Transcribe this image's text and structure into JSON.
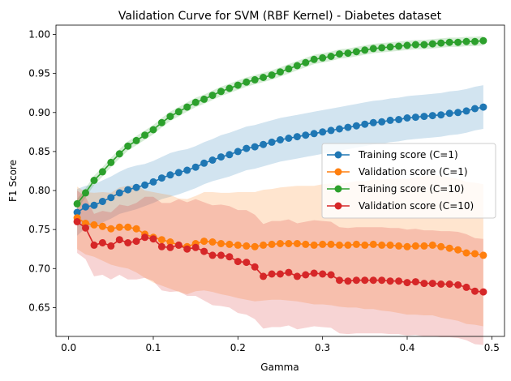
{
  "chart_data": {
    "type": "line",
    "title": "Validation Curve for SVM (RBF Kernel) - Diabetes dataset",
    "xlabel": "Gamma",
    "ylabel": "F1 Score",
    "xlim": [
      -0.015,
      0.515
    ],
    "ylim": [
      0.613,
      1.012
    ],
    "xticks": [
      0.0,
      0.1,
      0.2,
      0.3,
      0.4,
      0.5
    ],
    "xtick_labels": [
      "0.0",
      "0.1",
      "0.2",
      "0.3",
      "0.4",
      "0.5"
    ],
    "yticks": [
      0.65,
      0.7,
      0.75,
      0.8,
      0.85,
      0.9,
      0.95,
      1.0
    ],
    "ytick_labels": [
      "0.65",
      "0.70",
      "0.75",
      "0.80",
      "0.85",
      "0.90",
      "0.95",
      "1.00"
    ],
    "grid": false,
    "legend_position": "center-right",
    "x": [
      0.01,
      0.02,
      0.03,
      0.04,
      0.05,
      0.06,
      0.07,
      0.08,
      0.09,
      0.1,
      0.11,
      0.12,
      0.13,
      0.14,
      0.15,
      0.16,
      0.17,
      0.18,
      0.19,
      0.2,
      0.21,
      0.22,
      0.23,
      0.24,
      0.25,
      0.26,
      0.27,
      0.28,
      0.29,
      0.3,
      0.31,
      0.32,
      0.33,
      0.34,
      0.35,
      0.36,
      0.37,
      0.38,
      0.39,
      0.4,
      0.41,
      0.42,
      0.43,
      0.44,
      0.45,
      0.46,
      0.47,
      0.48,
      0.49
    ],
    "series": [
      {
        "name": "Training score (C=1)",
        "color": "#1f77b4",
        "values": [
          0.772,
          0.779,
          0.781,
          0.786,
          0.791,
          0.797,
          0.801,
          0.804,
          0.807,
          0.811,
          0.816,
          0.82,
          0.823,
          0.826,
          0.83,
          0.835,
          0.839,
          0.843,
          0.846,
          0.85,
          0.854,
          0.856,
          0.859,
          0.862,
          0.865,
          0.867,
          0.869,
          0.871,
          0.873,
          0.875,
          0.877,
          0.879,
          0.881,
          0.883,
          0.885,
          0.887,
          0.888,
          0.89,
          0.891,
          0.893,
          0.894,
          0.895,
          0.896,
          0.897,
          0.899,
          0.9,
          0.902,
          0.905,
          0.907
        ],
        "band_lower": [
          0.742,
          0.752,
          0.754,
          0.759,
          0.764,
          0.77,
          0.773,
          0.776,
          0.78,
          0.784,
          0.789,
          0.792,
          0.795,
          0.799,
          0.803,
          0.808,
          0.812,
          0.815,
          0.818,
          0.822,
          0.826,
          0.828,
          0.831,
          0.834,
          0.837,
          0.839,
          0.841,
          0.843,
          0.845,
          0.847,
          0.849,
          0.851,
          0.853,
          0.855,
          0.857,
          0.859,
          0.86,
          0.862,
          0.863,
          0.865,
          0.866,
          0.867,
          0.868,
          0.869,
          0.871,
          0.872,
          0.874,
          0.877,
          0.879
        ],
        "band_upper": [
          0.802,
          0.806,
          0.808,
          0.813,
          0.818,
          0.824,
          0.829,
          0.832,
          0.834,
          0.838,
          0.843,
          0.848,
          0.851,
          0.853,
          0.857,
          0.862,
          0.866,
          0.871,
          0.874,
          0.878,
          0.882,
          0.884,
          0.887,
          0.89,
          0.893,
          0.895,
          0.897,
          0.899,
          0.901,
          0.903,
          0.905,
          0.907,
          0.909,
          0.911,
          0.913,
          0.915,
          0.916,
          0.918,
          0.919,
          0.921,
          0.922,
          0.923,
          0.924,
          0.925,
          0.927,
          0.928,
          0.93,
          0.933,
          0.935
        ]
      },
      {
        "name": "Validation score (C=1)",
        "color": "#ff7f0e",
        "values": [
          0.765,
          0.758,
          0.756,
          0.754,
          0.751,
          0.753,
          0.753,
          0.751,
          0.744,
          0.74,
          0.737,
          0.734,
          0.73,
          0.728,
          0.732,
          0.735,
          0.734,
          0.732,
          0.731,
          0.73,
          0.729,
          0.728,
          0.73,
          0.731,
          0.732,
          0.732,
          0.732,
          0.731,
          0.73,
          0.731,
          0.731,
          0.73,
          0.73,
          0.731,
          0.73,
          0.731,
          0.73,
          0.73,
          0.729,
          0.728,
          0.729,
          0.729,
          0.73,
          0.728,
          0.726,
          0.724,
          0.72,
          0.719,
          0.717
        ],
        "band_lower": [
          0.725,
          0.718,
          0.715,
          0.71,
          0.705,
          0.702,
          0.7,
          0.695,
          0.688,
          0.682,
          0.678,
          0.674,
          0.67,
          0.667,
          0.671,
          0.672,
          0.67,
          0.667,
          0.665,
          0.662,
          0.66,
          0.658,
          0.659,
          0.66,
          0.66,
          0.659,
          0.658,
          0.656,
          0.654,
          0.654,
          0.653,
          0.651,
          0.65,
          0.65,
          0.648,
          0.648,
          0.646,
          0.645,
          0.643,
          0.641,
          0.641,
          0.64,
          0.64,
          0.637,
          0.635,
          0.633,
          0.629,
          0.628,
          0.626
        ],
        "band_upper": [
          0.805,
          0.798,
          0.797,
          0.798,
          0.797,
          0.804,
          0.806,
          0.807,
          0.8,
          0.798,
          0.796,
          0.794,
          0.79,
          0.789,
          0.793,
          0.798,
          0.798,
          0.797,
          0.797,
          0.798,
          0.798,
          0.798,
          0.801,
          0.802,
          0.804,
          0.805,
          0.806,
          0.806,
          0.806,
          0.808,
          0.809,
          0.809,
          0.81,
          0.812,
          0.812,
          0.814,
          0.814,
          0.815,
          0.815,
          0.815,
          0.817,
          0.818,
          0.82,
          0.819,
          0.817,
          0.815,
          0.811,
          0.81,
          0.808
        ]
      },
      {
        "name": "Training score (C=10)",
        "color": "#2ca02c",
        "values": [
          0.783,
          0.797,
          0.813,
          0.824,
          0.836,
          0.847,
          0.857,
          0.864,
          0.871,
          0.878,
          0.887,
          0.895,
          0.901,
          0.907,
          0.913,
          0.917,
          0.922,
          0.927,
          0.931,
          0.935,
          0.939,
          0.942,
          0.945,
          0.948,
          0.952,
          0.956,
          0.96,
          0.964,
          0.968,
          0.97,
          0.972,
          0.975,
          0.976,
          0.978,
          0.98,
          0.982,
          0.983,
          0.984,
          0.985,
          0.986,
          0.987,
          0.987,
          0.988,
          0.989,
          0.99,
          0.99,
          0.991,
          0.991,
          0.992
        ],
        "band_lower": [
          0.777,
          0.791,
          0.807,
          0.818,
          0.83,
          0.841,
          0.851,
          0.858,
          0.865,
          0.872,
          0.881,
          0.889,
          0.895,
          0.901,
          0.907,
          0.911,
          0.916,
          0.921,
          0.925,
          0.929,
          0.933,
          0.936,
          0.939,
          0.942,
          0.946,
          0.95,
          0.954,
          0.958,
          0.962,
          0.964,
          0.966,
          0.969,
          0.97,
          0.972,
          0.974,
          0.976,
          0.977,
          0.978,
          0.979,
          0.98,
          0.981,
          0.981,
          0.982,
          0.983,
          0.984,
          0.984,
          0.985,
          0.985,
          0.986
        ],
        "band_upper": [
          0.789,
          0.803,
          0.819,
          0.83,
          0.842,
          0.853,
          0.863,
          0.87,
          0.877,
          0.884,
          0.893,
          0.901,
          0.907,
          0.913,
          0.919,
          0.923,
          0.928,
          0.933,
          0.937,
          0.941,
          0.945,
          0.948,
          0.951,
          0.954,
          0.958,
          0.962,
          0.966,
          0.97,
          0.974,
          0.976,
          0.978,
          0.981,
          0.982,
          0.984,
          0.986,
          0.988,
          0.989,
          0.99,
          0.991,
          0.992,
          0.993,
          0.993,
          0.994,
          0.995,
          0.996,
          0.996,
          0.997,
          0.997,
          0.998
        ]
      },
      {
        "name": "Validation score (C=10)",
        "color": "#d62728",
        "values": [
          0.76,
          0.752,
          0.73,
          0.733,
          0.729,
          0.737,
          0.733,
          0.735,
          0.74,
          0.738,
          0.728,
          0.727,
          0.73,
          0.725,
          0.727,
          0.722,
          0.717,
          0.717,
          0.715,
          0.709,
          0.708,
          0.702,
          0.69,
          0.693,
          0.693,
          0.695,
          0.69,
          0.692,
          0.694,
          0.693,
          0.692,
          0.685,
          0.684,
          0.685,
          0.685,
          0.685,
          0.685,
          0.684,
          0.684,
          0.682,
          0.683,
          0.681,
          0.681,
          0.68,
          0.68,
          0.679,
          0.676,
          0.671,
          0.67
        ],
        "band_lower": [
          0.72,
          0.712,
          0.69,
          0.692,
          0.686,
          0.692,
          0.686,
          0.686,
          0.688,
          0.684,
          0.672,
          0.67,
          0.671,
          0.665,
          0.665,
          0.659,
          0.653,
          0.652,
          0.65,
          0.643,
          0.641,
          0.635,
          0.623,
          0.625,
          0.625,
          0.627,
          0.622,
          0.624,
          0.626,
          0.625,
          0.624,
          0.617,
          0.616,
          0.617,
          0.617,
          0.617,
          0.617,
          0.616,
          0.616,
          0.614,
          0.615,
          0.613,
          0.613,
          0.612,
          0.612,
          0.611,
          0.608,
          0.603,
          0.602
        ],
        "band_upper": [
          0.8,
          0.792,
          0.77,
          0.774,
          0.772,
          0.782,
          0.78,
          0.784,
          0.792,
          0.792,
          0.784,
          0.784,
          0.789,
          0.785,
          0.789,
          0.785,
          0.781,
          0.782,
          0.78,
          0.775,
          0.775,
          0.769,
          0.757,
          0.761,
          0.761,
          0.763,
          0.758,
          0.76,
          0.762,
          0.761,
          0.76,
          0.753,
          0.752,
          0.753,
          0.753,
          0.753,
          0.753,
          0.752,
          0.752,
          0.75,
          0.751,
          0.749,
          0.749,
          0.748,
          0.748,
          0.747,
          0.744,
          0.739,
          0.738
        ]
      }
    ]
  }
}
